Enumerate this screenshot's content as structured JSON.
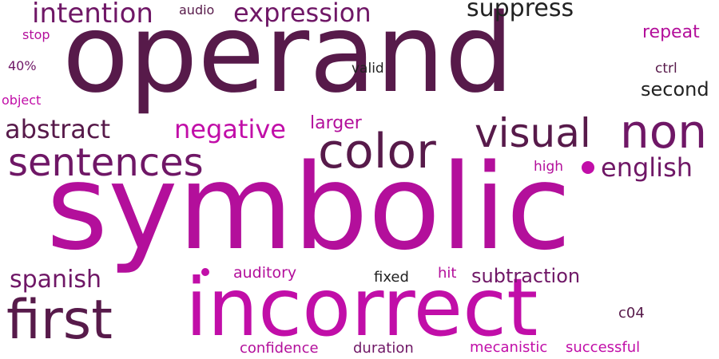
{
  "palette": {
    "dark_plum": "#571a4a",
    "plum": "#6f1766",
    "magenta": "#b30f9b",
    "bright_magenta": "#c10ea8",
    "near_black": "#222222"
  },
  "words": {
    "operand": "operand",
    "symbolic": "symbolic",
    "incorrect": "incorrect",
    "first": "first",
    "color": "color",
    "non": "non",
    "visual": "visual",
    "sentences": "sentences",
    "intention": "intention",
    "expression": "expression",
    "suppress": "suppress",
    "abstract": "abstract",
    "negative": "negative",
    "english": "english",
    "spanish": "spanish",
    "subtraction": "subtraction",
    "second": "second",
    "repeat": "repeat",
    "larger": "larger",
    "auditory": "auditory",
    "confidence": "confidence",
    "duration": "duration",
    "mecanistic": "mecanistic",
    "successful": "successful",
    "fixed": "fixed",
    "hit": "hit",
    "c04": "c04",
    "high": "high",
    "valid": "valid",
    "ctrl": "ctrl",
    "audio": "audio",
    "stop": "stop",
    "forty_pct": "40%",
    "object": "object"
  }
}
